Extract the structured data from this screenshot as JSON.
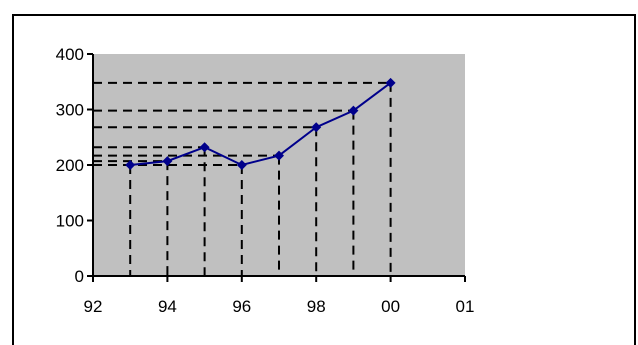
{
  "chart_data": {
    "type": "line",
    "title": "",
    "xlabel": "",
    "ylabel": "",
    "x_ticks": [
      "92",
      "94",
      "96",
      "98",
      "00",
      "01"
    ],
    "y_ticks": [
      "0",
      "100",
      "200",
      "300",
      "400"
    ],
    "xlim": [
      92,
      102
    ],
    "ylim": [
      0,
      400
    ],
    "grid": false,
    "plot_background": "#c0c0c0",
    "series": [
      {
        "color": "#00008b",
        "marker": "diamond",
        "x": [
          93,
          94,
          95,
          96,
          97,
          98,
          99,
          100
        ],
        "values": [
          200,
          207,
          232,
          200,
          217,
          268,
          298,
          348
        ]
      }
    ],
    "projection_lines": {
      "style": "dashed",
      "color": "#000000"
    }
  }
}
